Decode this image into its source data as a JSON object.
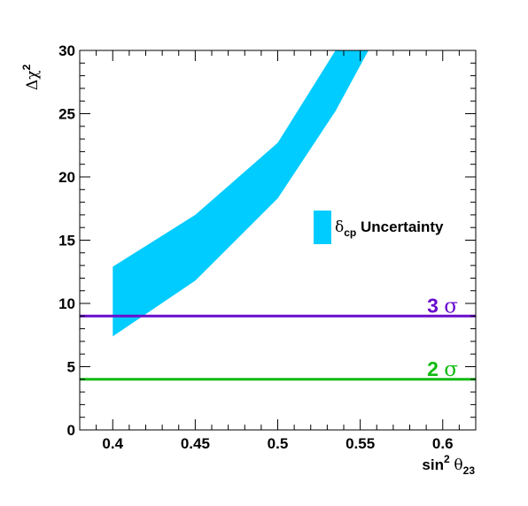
{
  "chart_data": {
    "type": "area",
    "xlabel": {
      "prefix": "sin",
      "sup": "2",
      "greek": "θ",
      "sub": "23"
    },
    "ylabel": {
      "greek": "Δχ",
      "sup": "2"
    },
    "xlim": [
      0.38,
      0.62
    ],
    "ylim": [
      0,
      30
    ],
    "x_ticks": [
      0.4,
      0.45,
      0.5,
      0.55,
      0.6
    ],
    "x_tick_labels": [
      "0.4",
      "0.45",
      "0.5",
      "0.55",
      "0.6"
    ],
    "y_ticks": [
      0,
      5,
      10,
      15,
      20,
      25,
      30
    ],
    "y_tick_labels": [
      "0",
      "5",
      "10",
      "15",
      "20",
      "25",
      "30"
    ],
    "band": {
      "color": "#00ccff",
      "legend_label": {
        "greek": "δ",
        "sub": "cp",
        "text": " Uncertainty"
      },
      "x": [
        0.4,
        0.45,
        0.5,
        0.535,
        0.555
      ],
      "upper": [
        12.9,
        17.0,
        22.7,
        30.0,
        30.0
      ],
      "lower": [
        7.4,
        11.8,
        18.3,
        25.2,
        30.0
      ]
    },
    "reference_lines": [
      {
        "y": 9,
        "number": "3",
        "greek": "σ",
        "color": "#6a0dcc"
      },
      {
        "y": 4,
        "number": "2",
        "greek": "σ",
        "color": "#11bb11"
      }
    ],
    "grid": false,
    "legend_position": "right"
  }
}
